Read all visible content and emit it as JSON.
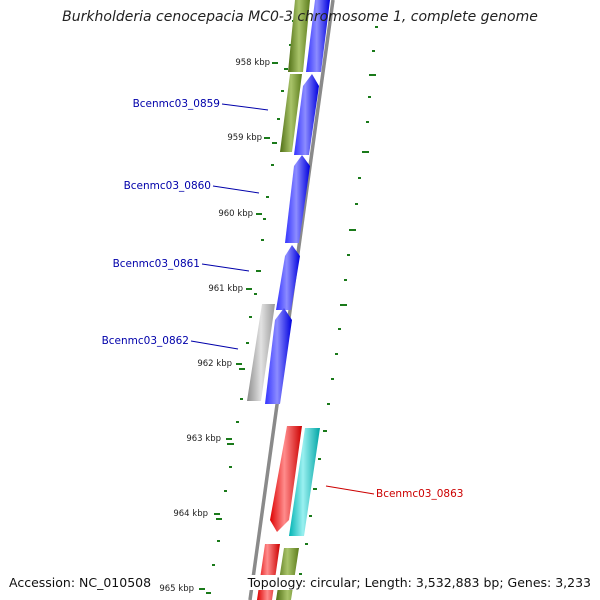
{
  "title": "Burkholderia cenocepacia MC0-3 chromosome 1, complete genome",
  "accession": "Accession: NC_010508",
  "summary": "Topology: circular; Length: 3,532,883 bp; Genes: 3,233",
  "kbp_labels": [
    "958 kbp",
    "959 kbp",
    "960 kbp",
    "961 kbp",
    "962 kbp",
    "963 kbp",
    "964 kbp",
    "965 kbp"
  ],
  "gene_labels": [
    {
      "id": "Bcenmc03_0859",
      "color": "#0000aa"
    },
    {
      "id": "Bcenmc03_0860",
      "color": "#0000aa"
    },
    {
      "id": "Bcenmc03_0861",
      "color": "#0000aa"
    },
    {
      "id": "Bcenmc03_0862",
      "color": "#0000aa"
    },
    {
      "id": "Bcenmc03_0863",
      "color": "#cc0000"
    }
  ],
  "colors": {
    "forward_cds": "#0000ff",
    "reverse_cds": "#ff0000",
    "olive_feature": "#6b8e23",
    "cyan_feature": "#00cccc",
    "gray_feature": "#aaaaaa",
    "backbone": "#808080",
    "gc_ticks": "#1a7a1a"
  }
}
